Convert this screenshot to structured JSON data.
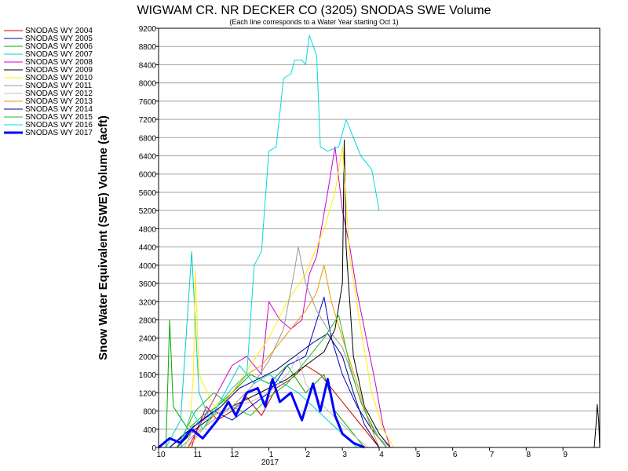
{
  "chart_data": {
    "type": "line",
    "title": "WIGWAM CR. NR DECKER CO (3205) SNODAS SWE Volume",
    "subtitle": "(Each line corresponds to a Water Year starting Oct 1)",
    "ylabel": "Snow Water Equivalent (SWE) Volume (acft)",
    "xlabel": "",
    "ylim": [
      0,
      9200
    ],
    "yticks": [
      0,
      400,
      800,
      1200,
      1600,
      2000,
      2400,
      2800,
      3200,
      3600,
      4000,
      4400,
      4800,
      5200,
      5600,
      6000,
      6400,
      6800,
      7200,
      7600,
      8000,
      8400,
      8800,
      9200
    ],
    "x_month_labels": [
      "10",
      "11",
      "12",
      "1",
      "2",
      "3",
      "4",
      "5",
      "6",
      "7",
      "8",
      "9"
    ],
    "x_year_label": "2017",
    "xlim_months": [
      0,
      12
    ],
    "grid": true,
    "legend_position": "left",
    "series": [
      {
        "name": "SNODAS WY 2004",
        "color": "#cc0000",
        "width": 1,
        "points": [
          [
            0.9,
            0
          ],
          [
            1.0,
            300
          ],
          [
            1.3,
            900
          ],
          [
            1.6,
            600
          ],
          [
            2.0,
            800
          ],
          [
            2.4,
            1100
          ],
          [
            2.8,
            700
          ],
          [
            3.2,
            1300
          ],
          [
            3.6,
            1500
          ],
          [
            4.0,
            1800
          ],
          [
            4.4,
            1600
          ],
          [
            4.8,
            1200
          ],
          [
            5.2,
            800
          ],
          [
            5.5,
            500
          ],
          [
            5.8,
            200
          ],
          [
            6.0,
            0
          ]
        ]
      },
      {
        "name": "SNODAS WY 2005",
        "color": "#0000cc",
        "width": 1,
        "points": [
          [
            0.3,
            0
          ],
          [
            0.6,
            200
          ],
          [
            1.0,
            500
          ],
          [
            1.5,
            800
          ],
          [
            2.0,
            600
          ],
          [
            2.5,
            900
          ],
          [
            3.0,
            1200
          ],
          [
            3.5,
            1800
          ],
          [
            4.0,
            2000
          ],
          [
            4.5,
            3300
          ],
          [
            4.7,
            2400
          ],
          [
            5.0,
            1600
          ],
          [
            5.4,
            900
          ],
          [
            5.8,
            400
          ],
          [
            6.2,
            0
          ]
        ]
      },
      {
        "name": "SNODAS WY 2006",
        "color": "#00aa00",
        "width": 1,
        "points": [
          [
            0.2,
            0
          ],
          [
            0.3,
            2800
          ],
          [
            0.4,
            900
          ],
          [
            0.8,
            400
          ],
          [
            1.2,
            700
          ],
          [
            1.6,
            900
          ],
          [
            2.0,
            1200
          ],
          [
            2.5,
            1600
          ],
          [
            3.0,
            1400
          ],
          [
            3.5,
            1800
          ],
          [
            4.0,
            1200
          ],
          [
            4.5,
            1600
          ],
          [
            4.8,
            800
          ],
          [
            5.2,
            400
          ],
          [
            5.6,
            0
          ]
        ]
      },
      {
        "name": "SNODAS WY 2007",
        "color": "#00cccc",
        "width": 1,
        "points": [
          [
            0.2,
            0
          ],
          [
            0.6,
            600
          ],
          [
            0.9,
            4300
          ],
          [
            1.1,
            1200
          ],
          [
            1.4,
            600
          ],
          [
            1.8,
            1200
          ],
          [
            2.2,
            1800
          ],
          [
            2.6,
            1400
          ],
          [
            3.0,
            1600
          ],
          [
            3.4,
            1400
          ],
          [
            3.8,
            1200
          ],
          [
            4.2,
            900
          ],
          [
            4.6,
            600
          ],
          [
            5.0,
            300
          ],
          [
            5.4,
            0
          ]
        ]
      },
      {
        "name": "SNODAS WY 2008",
        "color": "#cc00cc",
        "width": 1,
        "points": [
          [
            0.8,
            0
          ],
          [
            1.2,
            600
          ],
          [
            1.6,
            1200
          ],
          [
            2.0,
            1800
          ],
          [
            2.4,
            2000
          ],
          [
            2.8,
            1600
          ],
          [
            3.0,
            3200
          ],
          [
            3.3,
            2800
          ],
          [
            3.6,
            2600
          ],
          [
            3.9,
            2800
          ],
          [
            4.1,
            3800
          ],
          [
            4.3,
            4200
          ],
          [
            4.6,
            5600
          ],
          [
            4.8,
            6600
          ],
          [
            5.0,
            5200
          ],
          [
            5.2,
            4400
          ],
          [
            5.4,
            3400
          ],
          [
            5.6,
            2600
          ],
          [
            5.9,
            1400
          ],
          [
            6.1,
            500
          ],
          [
            6.3,
            0
          ]
        ]
      },
      {
        "name": "SNODAS WY 2009",
        "color": "#000000",
        "width": 1,
        "points": [
          [
            0.5,
            0
          ],
          [
            1.0,
            400
          ],
          [
            1.5,
            700
          ],
          [
            2.0,
            900
          ],
          [
            2.5,
            1100
          ],
          [
            3.0,
            1300
          ],
          [
            3.5,
            1500
          ],
          [
            4.0,
            1800
          ],
          [
            4.5,
            2100
          ],
          [
            4.8,
            2600
          ],
          [
            5.0,
            3600
          ],
          [
            5.05,
            6750
          ],
          [
            5.1,
            4400
          ],
          [
            5.3,
            2000
          ],
          [
            5.6,
            900
          ],
          [
            6.0,
            300
          ],
          [
            6.3,
            0
          ]
        ]
      },
      {
        "name": "SNODAS WY 2010",
        "color": "#ffee00",
        "width": 1,
        "points": [
          [
            0.8,
            0
          ],
          [
            0.95,
            1600
          ],
          [
            1.0,
            3900
          ],
          [
            1.1,
            1600
          ],
          [
            1.5,
            900
          ],
          [
            2.0,
            1200
          ],
          [
            2.5,
            1800
          ],
          [
            3.0,
            2400
          ],
          [
            3.5,
            3200
          ],
          [
            4.0,
            3800
          ],
          [
            4.5,
            4800
          ],
          [
            4.8,
            5600
          ],
          [
            5.0,
            6600
          ],
          [
            5.2,
            4200
          ],
          [
            5.5,
            2600
          ],
          [
            5.8,
            1200
          ],
          [
            6.1,
            400
          ],
          [
            6.4,
            0
          ]
        ]
      },
      {
        "name": "SNODAS WY 2011",
        "color": "#999999",
        "width": 1,
        "points": [
          [
            0.6,
            0
          ],
          [
            1.0,
            300
          ],
          [
            1.5,
            600
          ],
          [
            2.0,
            900
          ],
          [
            2.5,
            1300
          ],
          [
            3.0,
            1900
          ],
          [
            3.4,
            2600
          ],
          [
            3.7,
            3900
          ],
          [
            3.8,
            4400
          ],
          [
            4.0,
            3600
          ],
          [
            4.3,
            3000
          ],
          [
            4.6,
            2600
          ],
          [
            5.0,
            2200
          ],
          [
            5.3,
            1500
          ],
          [
            5.6,
            800
          ],
          [
            6.0,
            200
          ],
          [
            6.3,
            0
          ]
        ]
      },
      {
        "name": "SNODAS WY 2012",
        "color": "#c0c0c0",
        "width": 1,
        "points": [
          [
            0.7,
            0
          ],
          [
            1.0,
            500
          ],
          [
            1.5,
            700
          ],
          [
            2.0,
            900
          ],
          [
            2.5,
            1000
          ],
          [
            3.0,
            1200
          ],
          [
            3.5,
            1600
          ],
          [
            3.8,
            2000
          ],
          [
            4.0,
            1400
          ],
          [
            4.5,
            900
          ],
          [
            5.0,
            500
          ],
          [
            5.4,
            200
          ],
          [
            5.7,
            0
          ]
        ]
      },
      {
        "name": "SNODAS WY 2013",
        "color": "#ee9900",
        "width": 1,
        "points": [
          [
            0.8,
            0
          ],
          [
            1.2,
            400
          ],
          [
            1.6,
            800
          ],
          [
            2.0,
            1200
          ],
          [
            2.4,
            1600
          ],
          [
            2.8,
            1800
          ],
          [
            3.2,
            2200
          ],
          [
            3.6,
            2600
          ],
          [
            4.0,
            3000
          ],
          [
            4.3,
            3400
          ],
          [
            4.5,
            4000
          ],
          [
            4.7,
            3200
          ],
          [
            5.0,
            2400
          ],
          [
            5.4,
            1400
          ],
          [
            5.7,
            600
          ],
          [
            6.0,
            0
          ]
        ]
      },
      {
        "name": "SNODAS WY 2014",
        "color": "#000088",
        "width": 1,
        "points": [
          [
            0.3,
            0
          ],
          [
            0.7,
            300
          ],
          [
            1.2,
            600
          ],
          [
            1.7,
            900
          ],
          [
            2.2,
            1300
          ],
          [
            2.7,
            1500
          ],
          [
            3.2,
            1700
          ],
          [
            3.7,
            2000
          ],
          [
            4.2,
            2300
          ],
          [
            4.6,
            2500
          ],
          [
            5.0,
            2000
          ],
          [
            5.3,
            1200
          ],
          [
            5.6,
            500
          ],
          [
            6.0,
            0
          ]
        ]
      },
      {
        "name": "SNODAS WY 2015",
        "color": "#22bb22",
        "width": 1,
        "points": [
          [
            0.5,
            0
          ],
          [
            1.0,
            800
          ],
          [
            1.5,
            1200
          ],
          [
            2.0,
            900
          ],
          [
            2.5,
            700
          ],
          [
            3.0,
            1100
          ],
          [
            3.5,
            1400
          ],
          [
            4.0,
            1900
          ],
          [
            4.5,
            2400
          ],
          [
            4.9,
            2900
          ],
          [
            5.2,
            1800
          ],
          [
            5.5,
            1000
          ],
          [
            5.9,
            300
          ],
          [
            6.2,
            0
          ]
        ]
      },
      {
        "name": "SNODAS WY 2016",
        "color": "#00dddd",
        "width": 1,
        "points": [
          [
            0.6,
            0
          ],
          [
            0.9,
            800
          ],
          [
            1.2,
            400
          ],
          [
            1.6,
            900
          ],
          [
            2.0,
            1300
          ],
          [
            2.4,
            1600
          ],
          [
            2.6,
            4000
          ],
          [
            2.8,
            4300
          ],
          [
            3.0,
            6500
          ],
          [
            3.2,
            6600
          ],
          [
            3.4,
            8100
          ],
          [
            3.6,
            8200
          ],
          [
            3.7,
            8500
          ],
          [
            3.9,
            8500
          ],
          [
            4.0,
            8400
          ],
          [
            4.1,
            9050
          ],
          [
            4.3,
            8600
          ],
          [
            4.4,
            6600
          ],
          [
            4.6,
            6500
          ],
          [
            4.9,
            6600
          ],
          [
            5.1,
            7200
          ],
          [
            5.3,
            6800
          ],
          [
            5.5,
            6400
          ],
          [
            5.8,
            6100
          ],
          [
            6.0,
            5200
          ]
        ]
      },
      {
        "name": "SNODAS WY 2017",
        "color": "#0000ff",
        "width": 3,
        "points": [
          [
            0.0,
            0
          ],
          [
            0.3,
            200
          ],
          [
            0.6,
            100
          ],
          [
            0.9,
            400
          ],
          [
            1.2,
            200
          ],
          [
            1.6,
            600
          ],
          [
            1.9,
            1000
          ],
          [
            2.1,
            700
          ],
          [
            2.4,
            1200
          ],
          [
            2.7,
            1300
          ],
          [
            2.9,
            900
          ],
          [
            3.1,
            1500
          ],
          [
            3.3,
            1000
          ],
          [
            3.6,
            1200
          ],
          [
            3.9,
            600
          ],
          [
            4.2,
            1400
          ],
          [
            4.4,
            800
          ],
          [
            4.6,
            1500
          ],
          [
            4.8,
            700
          ],
          [
            5.0,
            300
          ],
          [
            5.3,
            100
          ],
          [
            5.6,
            0
          ]
        ]
      }
    ],
    "late_peak": {
      "points": [
        [
          11.85,
          0
        ],
        [
          11.9,
          500
        ],
        [
          11.93,
          950
        ],
        [
          11.97,
          600
        ],
        [
          12.0,
          0
        ]
      ]
    }
  }
}
